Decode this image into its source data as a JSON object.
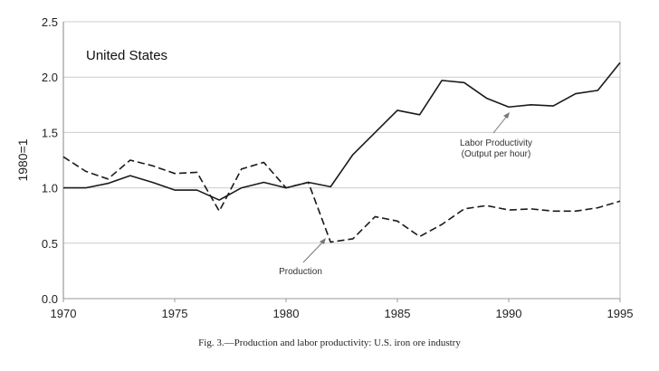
{
  "chart_data": {
    "type": "line",
    "title": "United States",
    "caption": "Fig. 3.—Production and labor productivity: U.S. iron ore industry",
    "xlabel": "",
    "ylabel": "1980=1",
    "xlim": [
      1970,
      1995
    ],
    "ylim": [
      0,
      2.5
    ],
    "xticks": [
      1970,
      1975,
      1980,
      1985,
      1990,
      1995
    ],
    "yticks": [
      "0.0",
      "0.5",
      "1.0",
      "1.5",
      "2.0",
      "2.5"
    ],
    "grid": "horizontal",
    "x": [
      1970,
      1971,
      1972,
      1973,
      1974,
      1975,
      1976,
      1977,
      1978,
      1979,
      1980,
      1981,
      1982,
      1983,
      1984,
      1985,
      1986,
      1987,
      1988,
      1989,
      1990,
      1991,
      1992,
      1993,
      1994,
      1995
    ],
    "series": [
      {
        "name": "Labor Productivity",
        "label_line1": "Labor Productivity",
        "label_line2": "(Output per hour)",
        "style": "solid",
        "values": [
          1.0,
          1.0,
          1.04,
          1.11,
          1.05,
          0.98,
          0.98,
          0.89,
          1.0,
          1.05,
          1.0,
          1.05,
          1.01,
          1.3,
          1.5,
          1.7,
          1.66,
          1.97,
          1.95,
          1.81,
          1.73,
          1.75,
          1.74,
          1.85,
          1.88,
          2.13
        ]
      },
      {
        "name": "Production",
        "label_line1": "Production",
        "style": "dashed",
        "values": [
          1.28,
          1.15,
          1.08,
          1.25,
          1.2,
          1.13,
          1.14,
          0.79,
          1.17,
          1.23,
          1.0,
          1.05,
          0.51,
          0.54,
          0.74,
          0.7,
          0.56,
          0.67,
          0.81,
          0.84,
          0.8,
          0.81,
          0.79,
          0.79,
          0.82,
          0.88
        ]
      }
    ]
  }
}
